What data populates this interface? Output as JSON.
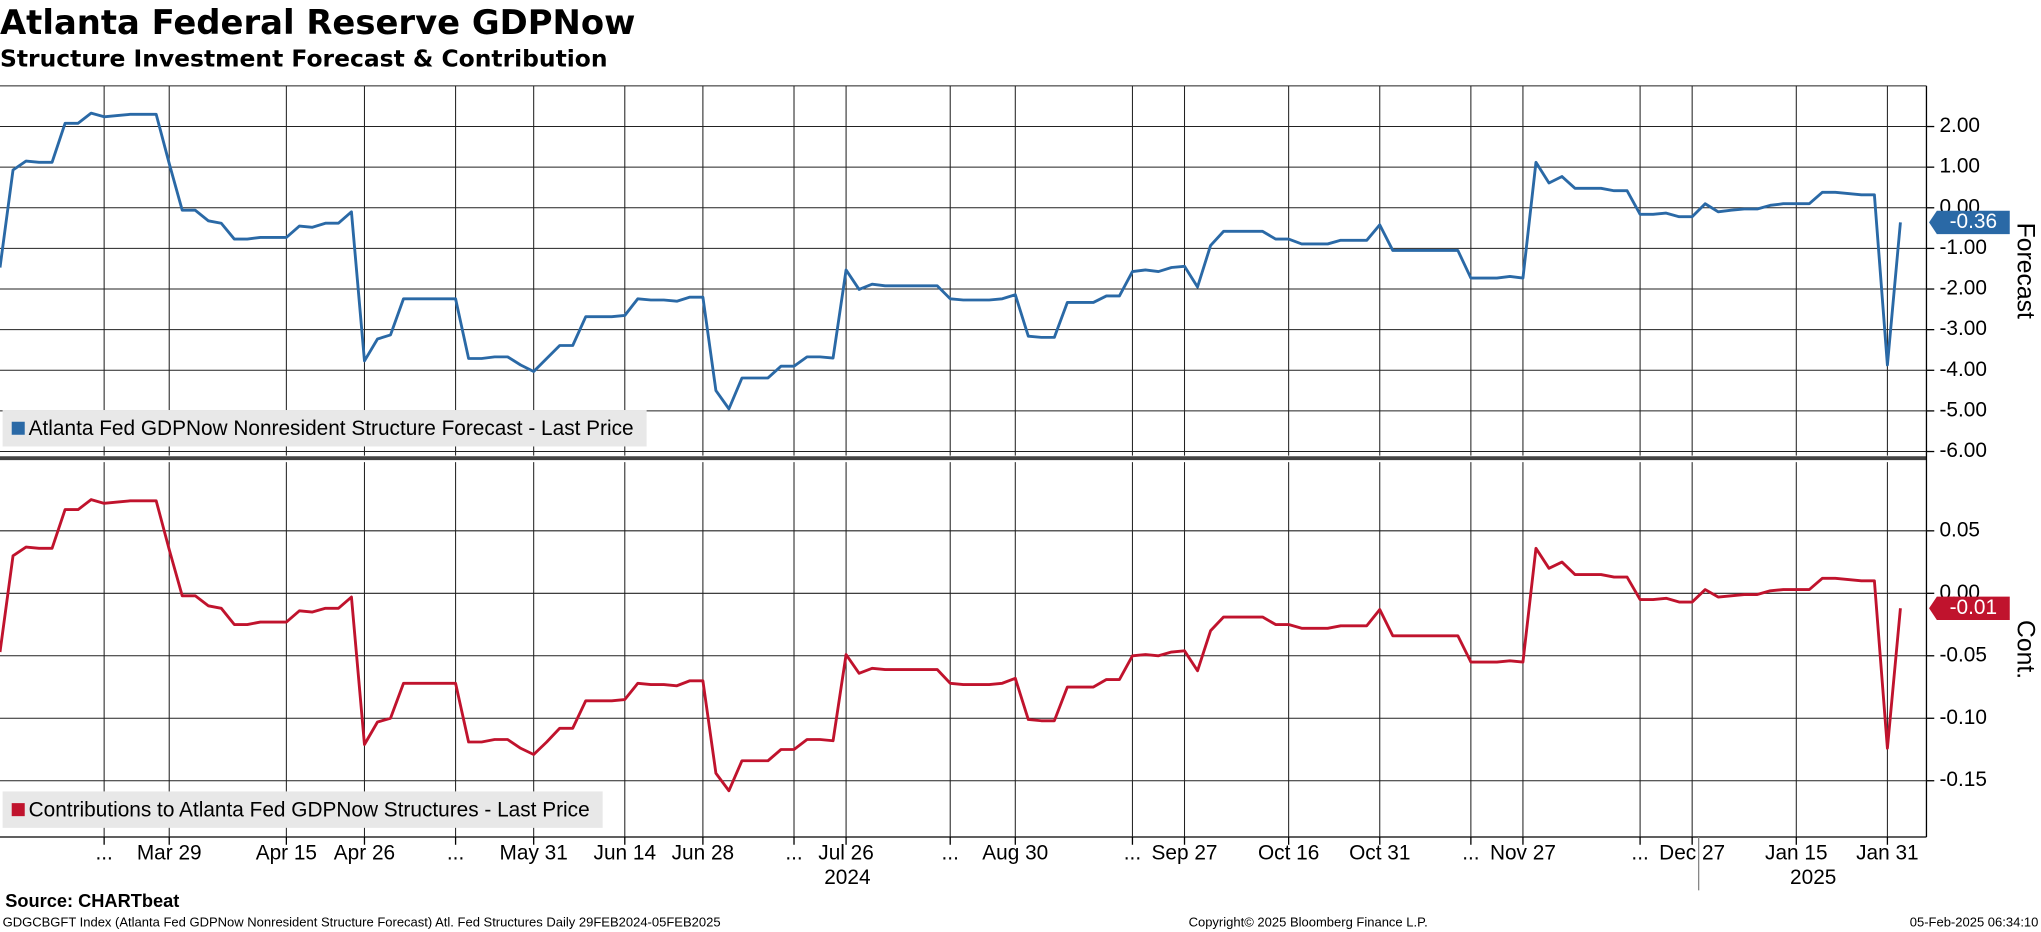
{
  "title": "Atlanta Federal Reserve GDPNow",
  "subtitle": "Structure Investment Forecast & Contribution",
  "source": "Source: CHARTbeat",
  "footer": {
    "left": "GDGCBGFT Index (Atlanta Fed GDPNow Nonresident Structure Forecast) Atl. Fed Structures  Daily 29FEB2024-05FEB2025",
    "center": "Copyright© 2025 Bloomberg Finance L.P.",
    "right": "05-Feb-2025 06:34:10"
  },
  "chart_data": [
    {
      "type": "line",
      "ylabel": "Forecast",
      "legend": "lower left",
      "grid": true,
      "ylim": [
        -6.1,
        3
      ],
      "yticks": [
        {
          "value": 2,
          "label": "2.00"
        },
        {
          "value": 1,
          "label": "1.00"
        },
        {
          "value": 0,
          "label": "0.00"
        },
        {
          "value": -1,
          "label": "-1.00"
        },
        {
          "value": -2,
          "label": "-2.00"
        },
        {
          "value": -3,
          "label": "-3.00"
        },
        {
          "value": -4,
          "label": "-4.00"
        },
        {
          "value": -5,
          "label": "-5.00"
        },
        {
          "value": -6,
          "label": "-6.00"
        }
      ],
      "series": [
        {
          "name": "Atlanta Fed GDPNow Nonresident Structure Forecast - Last Price",
          "color": "#2a69a6",
          "last_label": "-0.36",
          "values": [
            -1.47,
            0.93,
            1.15,
            1.12,
            1.12,
            2.08,
            2.08,
            2.33,
            2.24,
            2.27,
            2.3,
            2.3,
            2.3,
            1.09,
            -0.06,
            -0.06,
            -0.32,
            -0.38,
            -0.77,
            -0.77,
            -0.73,
            -0.73,
            -0.73,
            -0.45,
            -0.48,
            -0.38,
            -0.38,
            -0.1,
            -3.77,
            -3.23,
            -3.13,
            -2.24,
            -2.24,
            -2.24,
            -2.24,
            -2.24,
            -3.71,
            -3.71,
            -3.67,
            -3.67,
            -3.87,
            -4.03,
            -3.71,
            -3.39,
            -3.39,
            -2.68,
            -2.68,
            -2.68,
            -2.65,
            -2.24,
            -2.27,
            -2.27,
            -2.3,
            -2.2,
            -2.2,
            -4.5,
            -4.95,
            -4.19,
            -4.19,
            -4.19,
            -3.9,
            -3.9,
            -3.67,
            -3.67,
            -3.7,
            -1.53,
            -2.01,
            -1.88,
            -1.92,
            -1.92,
            -1.92,
            -1.92,
            -1.92,
            -2.24,
            -2.27,
            -2.27,
            -2.27,
            -2.24,
            -2.14,
            -3.16,
            -3.19,
            -3.19,
            -2.33,
            -2.33,
            -2.33,
            -2.17,
            -2.17,
            -1.57,
            -1.53,
            -1.57,
            -1.47,
            -1.44,
            -1.95,
            -0.93,
            -0.58,
            -0.58,
            -0.58,
            -0.58,
            -0.77,
            -0.77,
            -0.89,
            -0.89,
            -0.89,
            -0.8,
            -0.8,
            -0.8,
            -0.42,
            -1.05,
            -1.05,
            -1.05,
            -1.05,
            -1.05,
            -1.05,
            -1.73,
            -1.73,
            -1.73,
            -1.69,
            -1.73,
            1.12,
            0.61,
            0.77,
            0.48,
            0.48,
            0.48,
            0.42,
            0.42,
            -0.16,
            -0.16,
            -0.13,
            -0.22,
            -0.22,
            0.1,
            -0.1,
            -0.06,
            -0.03,
            -0.03,
            0.06,
            0.1,
            0.1,
            0.1,
            0.38,
            0.38,
            0.35,
            0.32,
            0.32,
            -3.87,
            -0.36
          ]
        }
      ]
    },
    {
      "type": "line",
      "ylabel": "Cont.",
      "legend": "lower left",
      "grid": true,
      "ylim": [
        -0.195,
        0.105
      ],
      "yticks": [
        0.05,
        {
          "value": 0,
          "label": "0.00"
        },
        -0.05,
        {
          "value": -0.1,
          "label": "-0.10"
        },
        -0.15
      ],
      "years": [
        "2024",
        "2025"
      ],
      "categories": [
        null,
        null,
        null,
        null,
        null,
        null,
        null,
        null,
        "...",
        null,
        null,
        null,
        null,
        "Mar 29",
        null,
        null,
        null,
        null,
        null,
        null,
        null,
        null,
        "Apr 15",
        null,
        null,
        null,
        null,
        null,
        "Apr 26",
        null,
        null,
        null,
        null,
        null,
        null,
        "...",
        null,
        null,
        null,
        null,
        null,
        "May 31",
        null,
        null,
        null,
        null,
        null,
        null,
        "Jun 14",
        null,
        null,
        null,
        null,
        null,
        "Jun 28",
        null,
        null,
        null,
        null,
        null,
        null,
        "...",
        null,
        null,
        null,
        "Jul 26",
        null,
        null,
        null,
        null,
        null,
        null,
        null,
        "...",
        null,
        null,
        null,
        null,
        "Aug 30",
        null,
        null,
        null,
        null,
        null,
        null,
        null,
        null,
        "...",
        null,
        null,
        null,
        "Sep 27",
        null,
        null,
        null,
        null,
        null,
        null,
        null,
        "Oct 16",
        null,
        null,
        null,
        null,
        null,
        null,
        "Oct 31",
        null,
        null,
        null,
        null,
        null,
        null,
        "...",
        null,
        null,
        null,
        "Nov 27",
        null,
        null,
        null,
        null,
        null,
        null,
        null,
        null,
        "...",
        null,
        null,
        null,
        "Dec 27",
        null,
        null,
        null,
        null,
        null,
        null,
        null,
        "Jan 15",
        null,
        null,
        null,
        null,
        null,
        null,
        "Jan 31",
        null
      ],
      "series": [
        {
          "name": "Contributions to Atlanta Fed GDPNow Structures - Last Price",
          "color": "#c0132d",
          "last_label": "-0.01",
          "values": [
            -0.047,
            0.03,
            0.037,
            0.036,
            0.036,
            0.067,
            0.067,
            0.075,
            0.072,
            0.073,
            0.074,
            0.074,
            0.074,
            0.035,
            -0.002,
            -0.002,
            -0.01,
            -0.012,
            -0.025,
            -0.025,
            -0.023,
            -0.023,
            -0.023,
            -0.014,
            -0.015,
            -0.012,
            -0.012,
            -0.003,
            -0.121,
            -0.103,
            -0.1,
            -0.072,
            -0.072,
            -0.072,
            -0.072,
            -0.072,
            -0.119,
            -0.119,
            -0.117,
            -0.117,
            -0.124,
            -0.129,
            -0.119,
            -0.108,
            -0.108,
            -0.086,
            -0.086,
            -0.086,
            -0.085,
            -0.072,
            -0.073,
            -0.073,
            -0.074,
            -0.07,
            -0.07,
            -0.144,
            -0.158,
            -0.134,
            -0.134,
            -0.134,
            -0.125,
            -0.125,
            -0.117,
            -0.117,
            -0.118,
            -0.049,
            -0.064,
            -0.06,
            -0.061,
            -0.061,
            -0.061,
            -0.061,
            -0.061,
            -0.072,
            -0.073,
            -0.073,
            -0.073,
            -0.072,
            -0.068,
            -0.101,
            -0.102,
            -0.102,
            -0.075,
            -0.075,
            -0.075,
            -0.069,
            -0.069,
            -0.05,
            -0.049,
            -0.05,
            -0.047,
            -0.046,
            -0.062,
            -0.03,
            -0.019,
            -0.019,
            -0.019,
            -0.019,
            -0.025,
            -0.025,
            -0.028,
            -0.028,
            -0.028,
            -0.026,
            -0.026,
            -0.026,
            -0.013,
            -0.034,
            -0.034,
            -0.034,
            -0.034,
            -0.034,
            -0.034,
            -0.055,
            -0.055,
            -0.055,
            -0.054,
            -0.055,
            0.036,
            0.02,
            0.025,
            0.015,
            0.015,
            0.015,
            0.013,
            0.013,
            -0.005,
            -0.005,
            -0.004,
            -0.007,
            -0.007,
            0.003,
            -0.003,
            -0.002,
            -0.001,
            -0.001,
            0.002,
            0.003,
            0.003,
            0.003,
            0.012,
            0.012,
            0.011,
            0.01,
            0.01,
            -0.124,
            -0.012
          ]
        }
      ]
    }
  ]
}
